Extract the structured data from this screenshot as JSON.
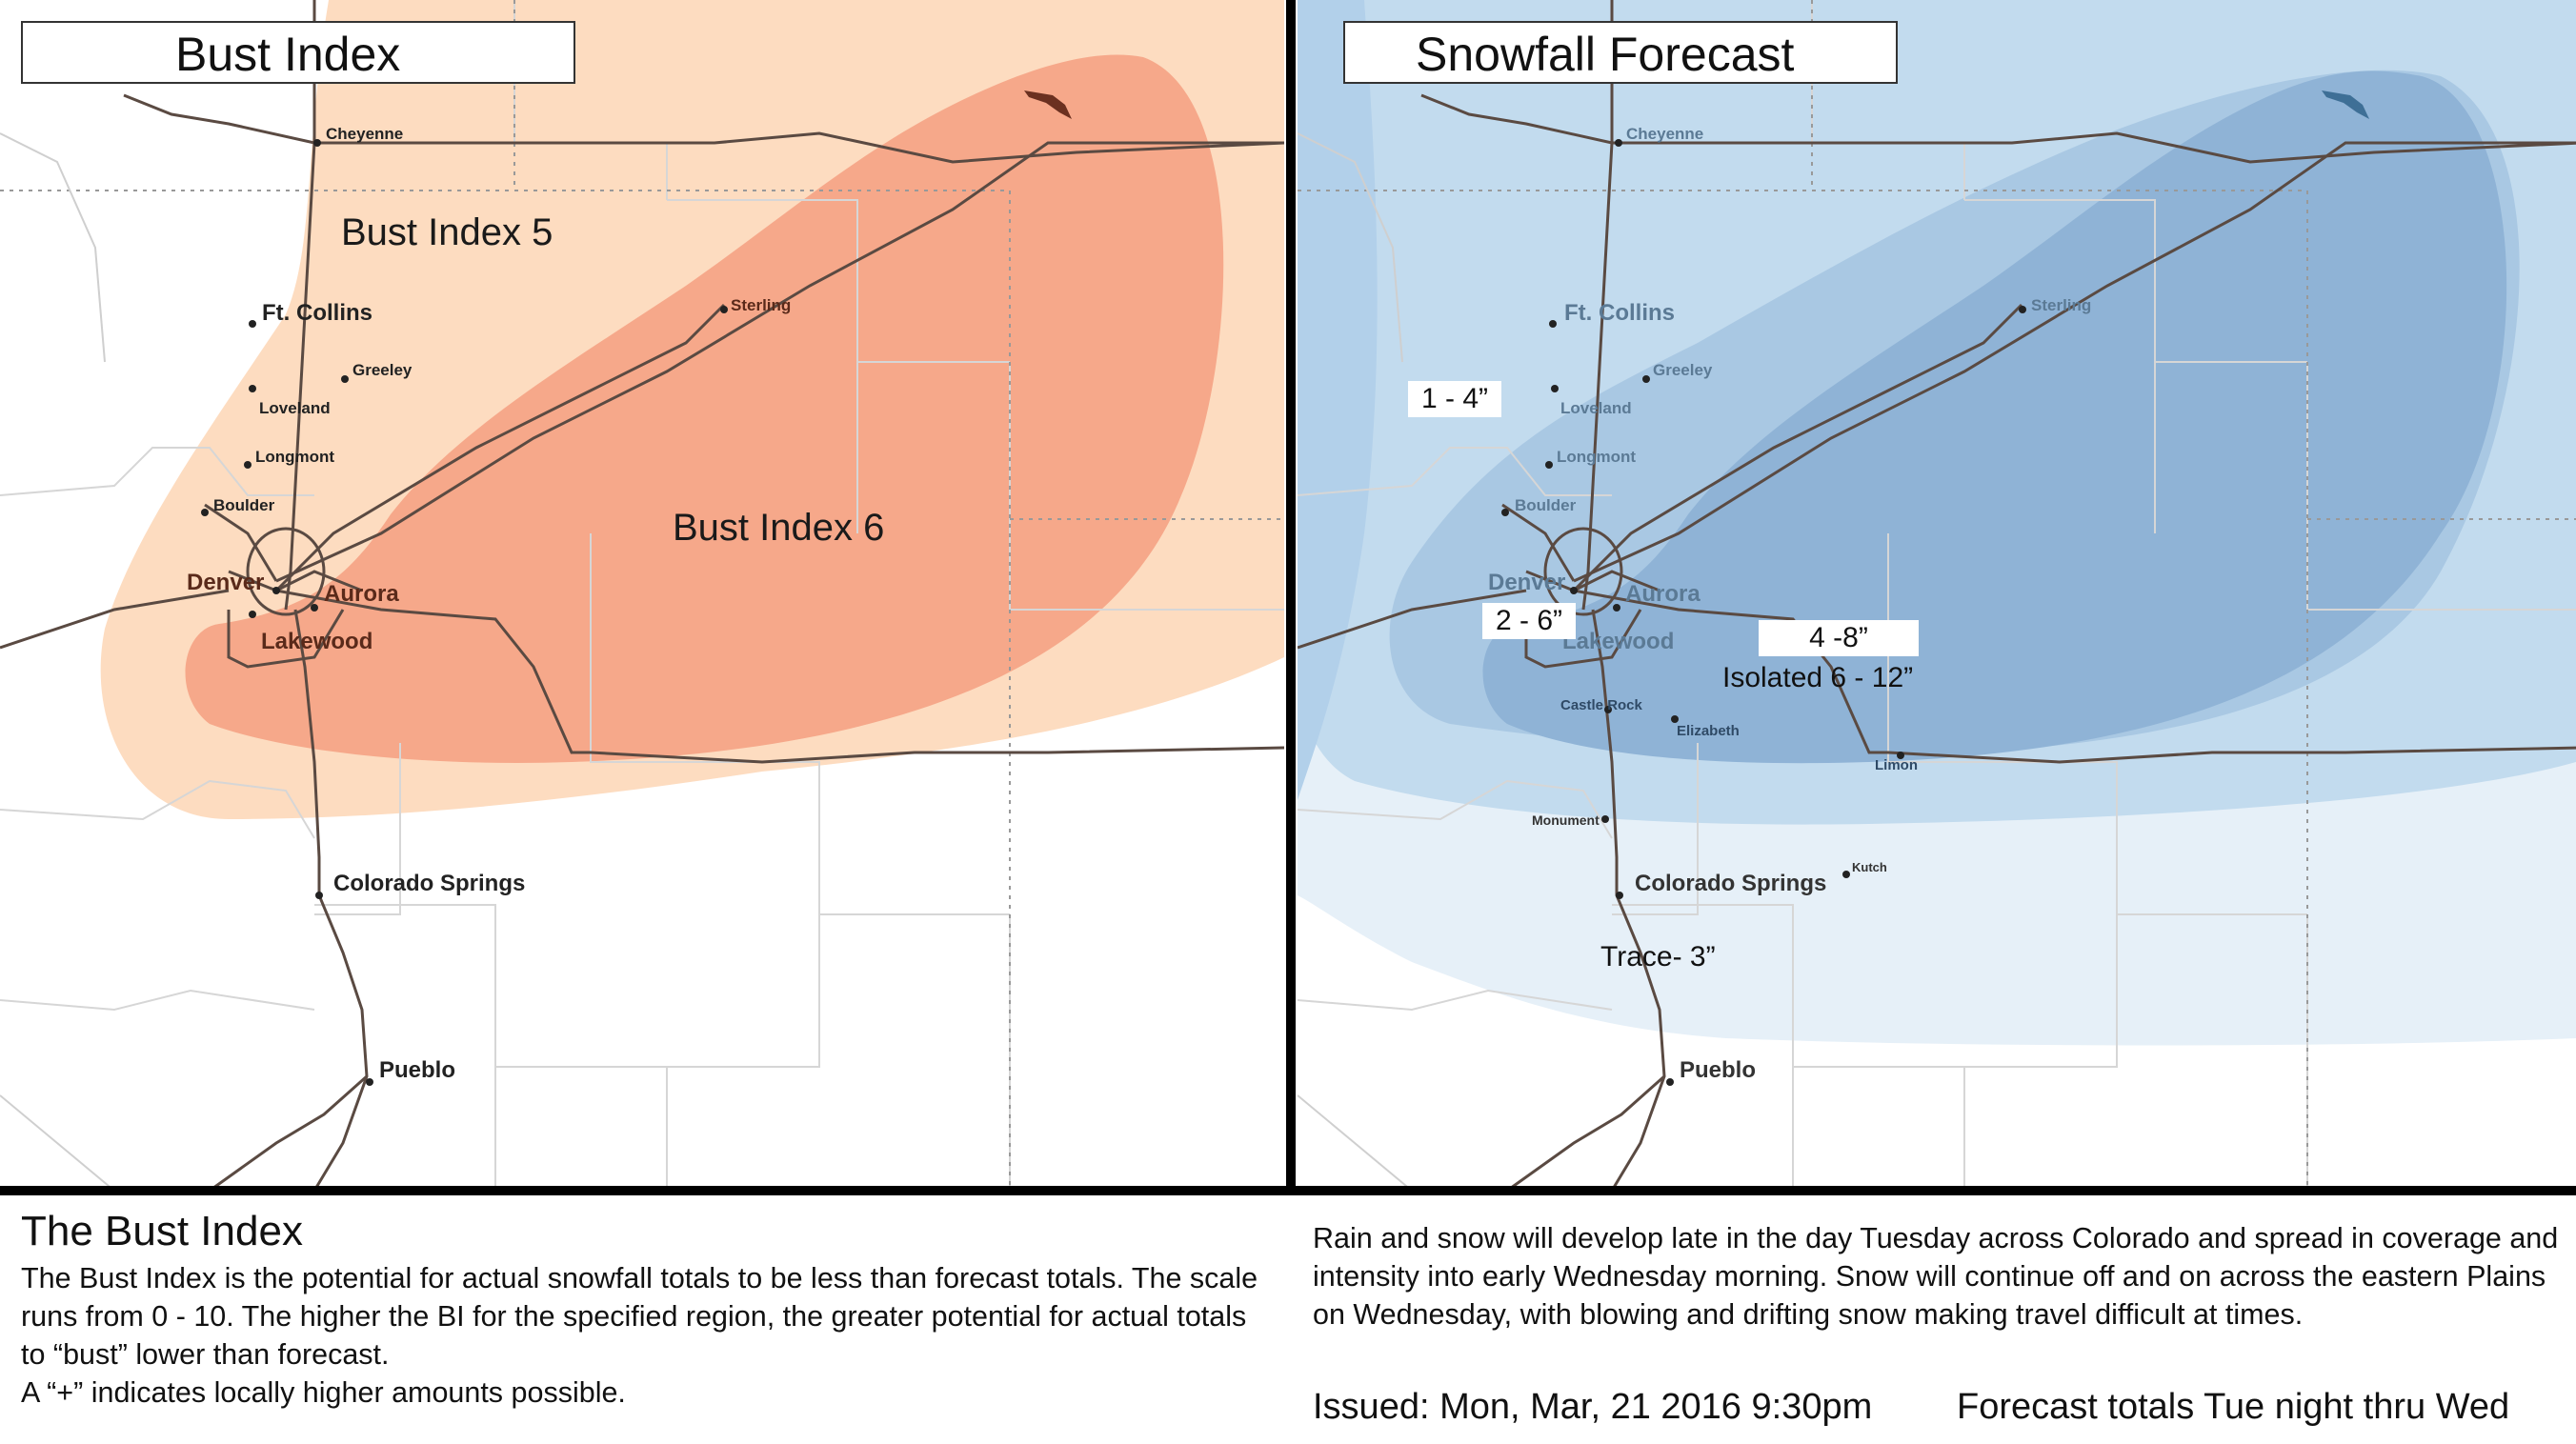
{
  "left_panel": {
    "title": "Bust Index",
    "zone_labels": [
      "Bust Index 5",
      "Bust Index 6"
    ]
  },
  "right_panel": {
    "title": "Snowfall Forecast",
    "amounts": [
      "1 - 4”",
      "2 - 6”",
      "4 -8”",
      "Isolated 6 - 12”",
      "Trace- 3”"
    ]
  },
  "cities": {
    "cheyenne": "Cheyenne",
    "ft_collins": "Ft. Collins",
    "greeley": "Greeley",
    "loveland": "Loveland",
    "longmont": "Longmont",
    "boulder": "Boulder",
    "denver": "Denver",
    "aurora": "Aurora",
    "lakewood": "Lakewood",
    "sterling": "Sterling",
    "colorado_springs": "Colorado Springs",
    "pueblo": "Pueblo",
    "castle_rock": "Castle Rock",
    "elizabeth": "Elizabeth",
    "limon": "Limon",
    "monument": "Monument",
    "kutch": "Kutch"
  },
  "bust_index": {
    "heading": "The Bust Index",
    "paragraph": "The Bust Index is the potential for actual snowfall totals to be less than forecast totals. The scale runs from 0 - 10. The higher the BI for the specified region, the greater potential for actual totals to “bust” lower than forecast.",
    "note": "A “+” indicates locally higher amounts possible."
  },
  "forecast": {
    "text": "Rain and snow will develop late in the day Tuesday across Colorado and spread in coverage and intensity into early Wednesday morning. Snow will continue off and on across the eastern Plains on Wednesday, with blowing and drifting snow making travel difficult at times.",
    "issued": "Issued: Mon, Mar, 21 2016 9:30pm",
    "totals": "Forecast totals Tue night thru Wed"
  },
  "colors": {
    "bust5": "#fddcc0",
    "bust6": "#f6a88a",
    "snow_light": "#e6f0f8",
    "snow_mid": "#c2dbee",
    "snow_dark": "#8fb3d6",
    "road": "#5a4a42",
    "divider": "#000000"
  }
}
